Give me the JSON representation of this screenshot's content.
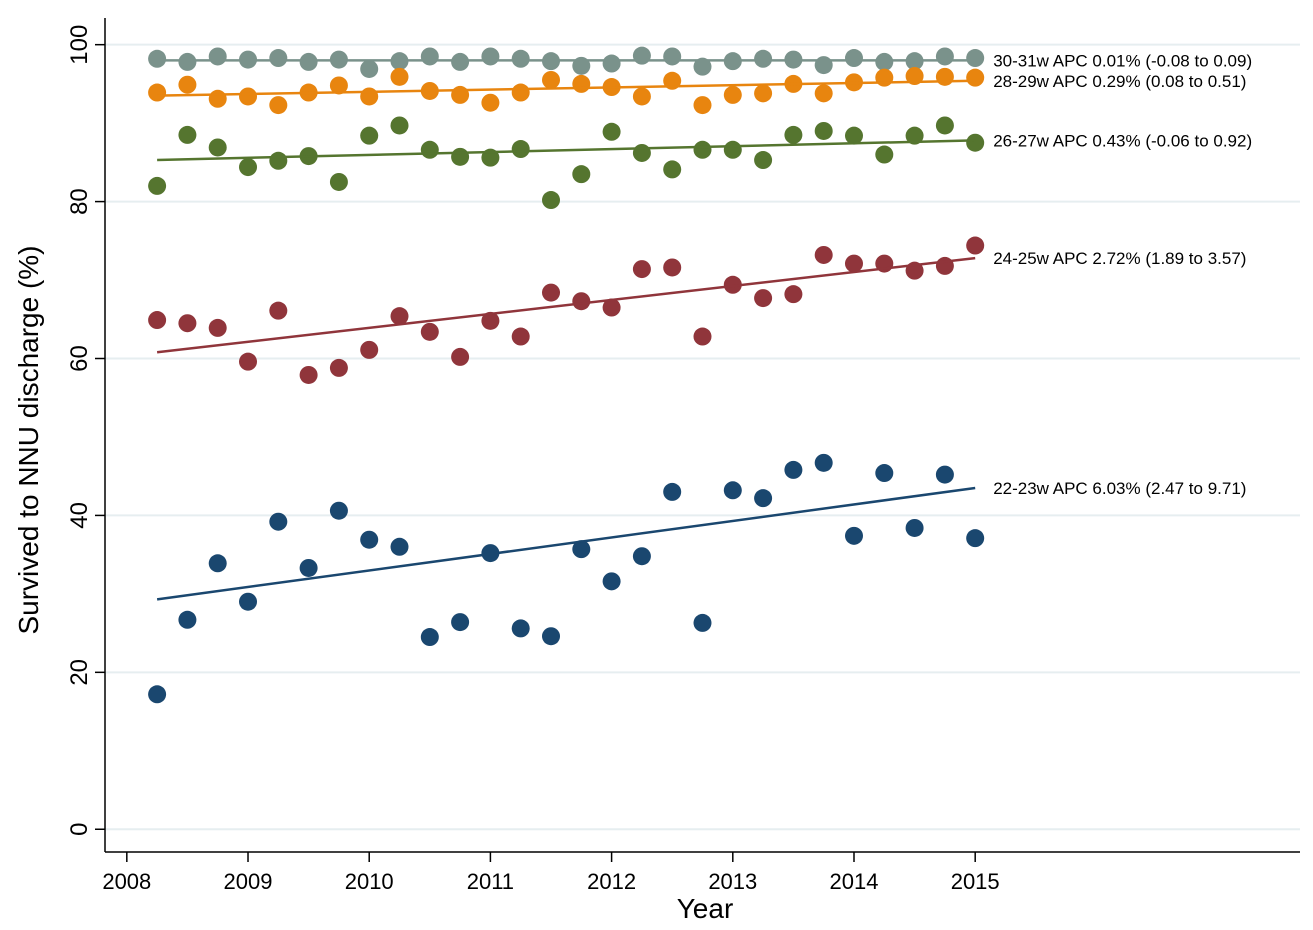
{
  "chart_data": {
    "type": "scatter",
    "x_label": "Year",
    "y_label": "Survived to NNU discharge (%)",
    "xlim": [
      2007.82,
      2017.68
    ],
    "ylim": [
      -2.9,
      103.4
    ],
    "xticks": [
      2008,
      2009,
      2010,
      2011,
      2012,
      2013,
      2014,
      2015
    ],
    "yticks": [
      0,
      20,
      40,
      60,
      80,
      100
    ],
    "grid": true,
    "x": [
      2008.25,
      2008.5,
      2008.75,
      2009,
      2009.25,
      2009.5,
      2009.75,
      2010,
      2010.25,
      2010.5,
      2010.75,
      2011,
      2011.25,
      2011.5,
      2011.75,
      2012,
      2012.25,
      2012.5,
      2012.75,
      2013,
      2013.25,
      2013.5,
      2013.75,
      2014,
      2014.25,
      2014.5,
      2014.75,
      2015
    ],
    "series": [
      {
        "name": "30-31w APC 0.01% (-0.08 to 0.09)",
        "color": "#7a928b",
        "values": [
          98.2,
          97.8,
          98.5,
          98.1,
          98.3,
          97.8,
          98.1,
          96.9,
          97.9,
          98.5,
          97.8,
          98.5,
          98.2,
          97.9,
          97.3,
          97.6,
          98.6,
          98.5,
          97.2,
          97.9,
          98.2,
          98.1,
          97.4,
          98.3,
          97.8,
          97.9,
          98.5,
          98.3
        ],
        "trend": {
          "x": [
            2008.25,
            2015
          ],
          "values": [
            98.0,
            98.0
          ]
        }
      },
      {
        "name": "28-29w APC 0.29% (0.08 to 0.51)",
        "color": "#e8850f",
        "values": [
          93.9,
          94.9,
          93.1,
          93.4,
          92.3,
          93.9,
          94.8,
          93.4,
          95.9,
          94.1,
          93.6,
          92.6,
          93.9,
          95.5,
          95.0,
          94.6,
          93.4,
          95.4,
          92.3,
          93.6,
          93.8,
          95.0,
          93.8,
          95.2,
          95.8,
          96.0,
          95.9,
          95.8
        ],
        "trend": {
          "x": [
            2008.25,
            2015
          ],
          "values": [
            93.5,
            95.4
          ]
        }
      },
      {
        "name": "26-27w APC 0.43% (-0.06 to 0.92)",
        "color": "#55752f",
        "values": [
          82.0,
          88.5,
          86.9,
          84.4,
          85.2,
          85.8,
          82.5,
          88.4,
          89.7,
          86.6,
          85.7,
          85.6,
          86.7,
          80.2,
          83.5,
          88.9,
          86.2,
          84.1,
          86.6,
          86.6,
          85.3,
          88.5,
          89.0,
          88.4,
          86.0,
          88.4,
          89.7,
          87.5
        ],
        "trend": {
          "x": [
            2008.25,
            2015
          ],
          "values": [
            85.3,
            87.8
          ]
        }
      },
      {
        "name": "24-25w APC 2.72% (1.89 to 3.57)",
        "color": "#90353b",
        "values": [
          64.9,
          64.5,
          63.9,
          59.6,
          66.1,
          57.9,
          58.8,
          61.1,
          65.4,
          63.4,
          60.2,
          64.8,
          62.8,
          68.4,
          67.3,
          66.5,
          71.4,
          71.6,
          62.8,
          69.4,
          67.7,
          68.2,
          73.2,
          72.1,
          72.1,
          71.2,
          71.8,
          74.4
        ],
        "trend": {
          "x": [
            2008.25,
            2015
          ],
          "values": [
            60.8,
            72.8
          ]
        }
      },
      {
        "name": "22-23w APC 6.03% (2.47 to 9.71)",
        "color": "#1a476f",
        "values": [
          17.2,
          26.7,
          33.9,
          29.0,
          39.2,
          33.3,
          40.6,
          36.9,
          36.0,
          24.5,
          26.4,
          35.2,
          25.6,
          24.6,
          35.7,
          31.6,
          34.8,
          43.0,
          26.3,
          43.2,
          42.2,
          45.8,
          46.7,
          37.4,
          45.4,
          38.4,
          45.2,
          37.1
        ],
        "trend": {
          "x": [
            2008.25,
            2015
          ],
          "values": [
            29.3,
            43.5
          ]
        }
      }
    ]
  }
}
